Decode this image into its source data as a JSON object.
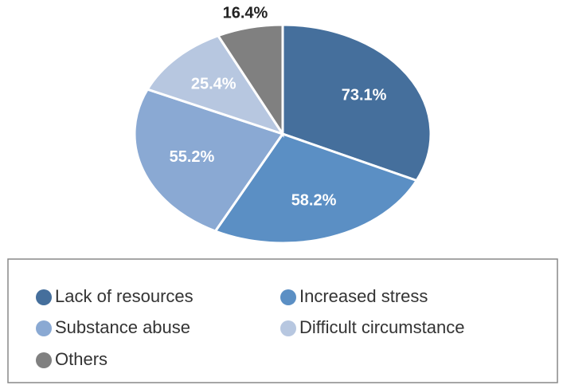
{
  "chart_data": {
    "type": "pie",
    "categories": [
      "Lack of resources",
      "Increased stress",
      "Substance abuse",
      "Difficult circumstance",
      "Others"
    ],
    "values": [
      73.1,
      58.2,
      55.2,
      25.4,
      16.4
    ],
    "value_labels": [
      "73.1%",
      "58.2%",
      "55.2%",
      "25.4%",
      "16.4%"
    ],
    "colors": [
      "#456f9c",
      "#5b8fc4",
      "#8aa9d3",
      "#b7c7e0",
      "#808080"
    ]
  }
}
